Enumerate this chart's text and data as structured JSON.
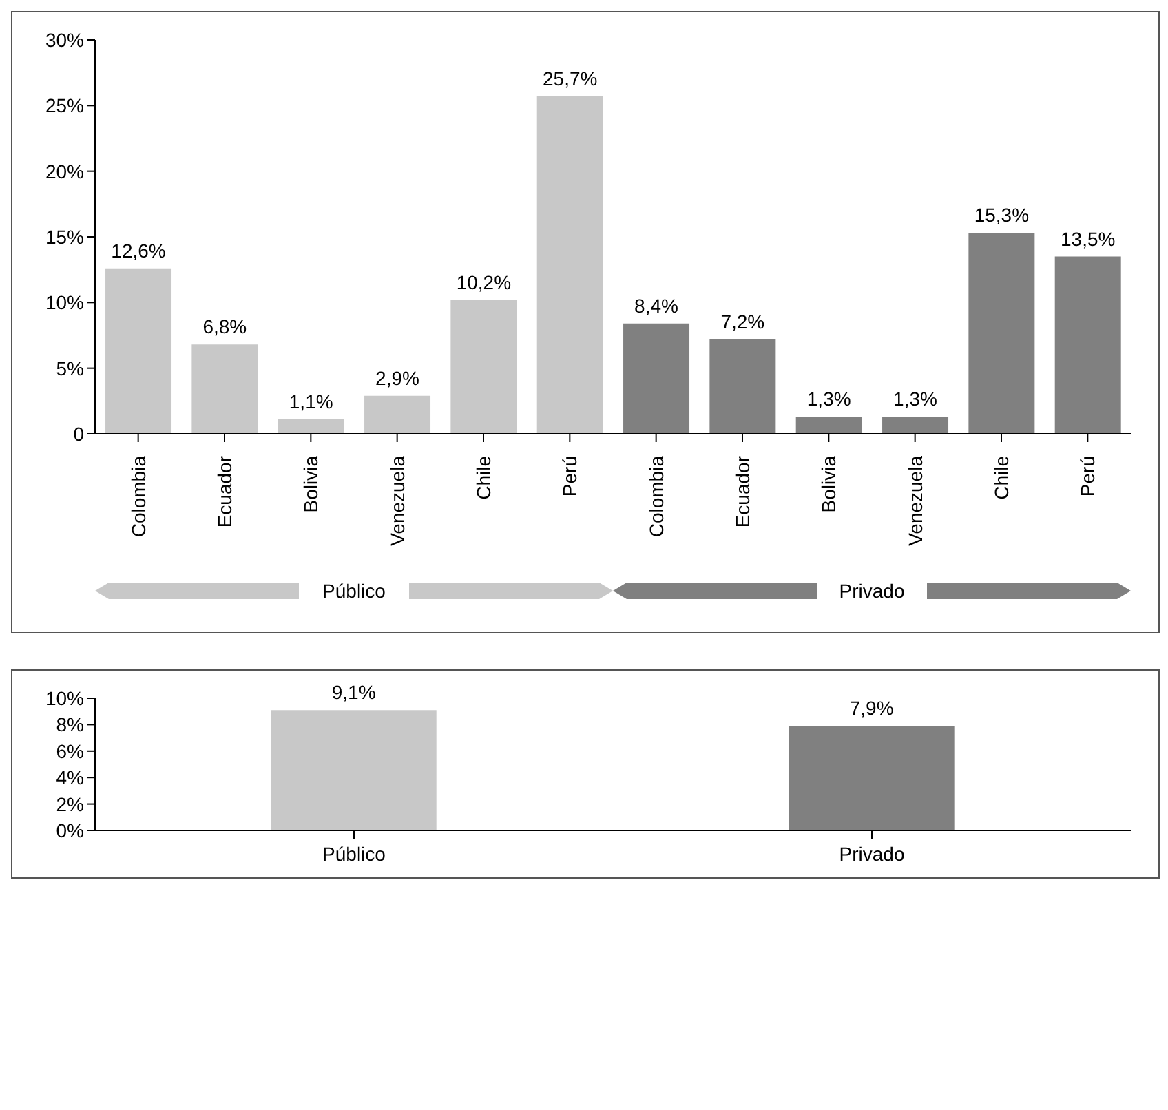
{
  "chart_data": [
    {
      "type": "bar",
      "categories": [
        "Colombia",
        "Ecuador",
        "Bolivia",
        "Venezuela",
        "Chile",
        "Perú",
        "Colombia",
        "Ecuador",
        "Bolivia",
        "Venezuela",
        "Chile",
        "Perú"
      ],
      "values": [
        12.6,
        6.8,
        1.1,
        2.9,
        10.2,
        25.7,
        8.4,
        7.2,
        1.3,
        1.3,
        15.3,
        13.5
      ],
      "colors": [
        "#c8c8c8",
        "#c8c8c8",
        "#c8c8c8",
        "#c8c8c8",
        "#c8c8c8",
        "#c8c8c8",
        "#808080",
        "#808080",
        "#808080",
        "#808080",
        "#808080",
        "#808080"
      ],
      "value_labels": [
        "12,6%",
        "6,8%",
        "1,1%",
        "2,9%",
        "10,2%",
        "25,7%",
        "8,4%",
        "7,2%",
        "1,3%",
        "1,3%",
        "15,3%",
        "13,5%"
      ],
      "ylim": [
        0,
        30
      ],
      "yticks": [
        0,
        {
          "value": 5,
          "label": "5%"
        },
        {
          "value": 10,
          "label": "10%"
        },
        {
          "value": 15,
          "label": "15%"
        },
        {
          "value": 20,
          "label": "20%"
        },
        {
          "value": 25,
          "label": "25%"
        },
        {
          "value": 30,
          "label": "30%"
        }
      ],
      "annotations": [
        "Público",
        "Privado"
      ]
    },
    {
      "type": "bar",
      "categories": [
        "Público",
        "Privado"
      ],
      "values": [
        9.1,
        7.9
      ],
      "colors": [
        "#c8c8c8",
        "#808080"
      ],
      "value_labels": [
        "9,1%",
        "7,9%"
      ],
      "ylim": [
        0,
        10
      ],
      "yticks": [
        {
          "value": 0,
          "label": "0%"
        },
        {
          "value": 2,
          "label": "2%"
        },
        {
          "value": 4,
          "label": "4%"
        },
        {
          "value": 6,
          "label": "6%"
        },
        {
          "value": 8,
          "label": "8%"
        },
        {
          "value": 10,
          "label": "10%"
        }
      ]
    }
  ]
}
